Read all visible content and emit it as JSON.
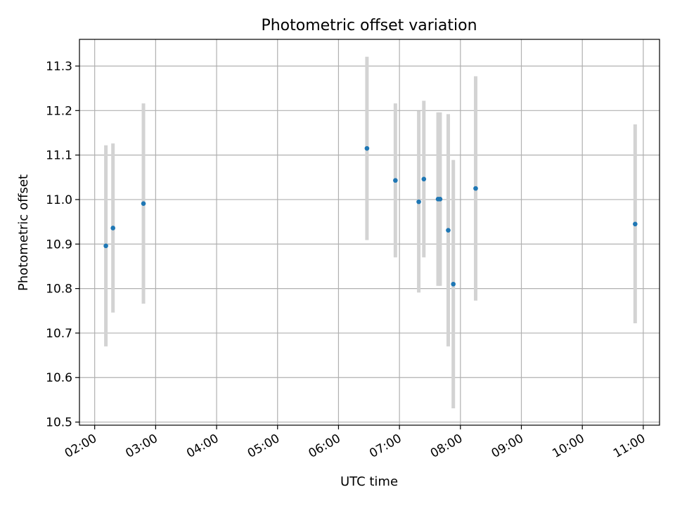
{
  "chart_data": {
    "type": "scatter",
    "title": "Photometric offset variation",
    "xlabel": "UTC time",
    "ylabel": "Photometric offset",
    "xlim": [
      "01:45",
      "11:16"
    ],
    "ylim": [
      10.493,
      11.36
    ],
    "x_ticks": [
      "02:00",
      "03:00",
      "04:00",
      "05:00",
      "06:00",
      "07:00",
      "08:00",
      "09:00",
      "10:00",
      "11:00"
    ],
    "y_ticks": [
      10.5,
      10.6,
      10.7,
      10.8,
      10.9,
      11.0,
      11.1,
      11.2,
      11.3
    ],
    "grid": true,
    "series": [
      {
        "marker": "dot",
        "error_bars": true,
        "points": [
          {
            "x": "02:11",
            "y": 10.896,
            "ylow": 10.67,
            "yhigh": 11.122
          },
          {
            "x": "02:18",
            "y": 10.936,
            "ylow": 10.746,
            "yhigh": 11.126
          },
          {
            "x": "02:48",
            "y": 10.991,
            "ylow": 10.766,
            "yhigh": 11.216
          },
          {
            "x": "06:28",
            "y": 11.115,
            "ylow": 10.909,
            "yhigh": 11.321
          },
          {
            "x": "06:56",
            "y": 11.043,
            "ylow": 10.87,
            "yhigh": 11.216
          },
          {
            "x": "07:19",
            "y": 10.995,
            "ylow": 10.791,
            "yhigh": 11.199
          },
          {
            "x": "07:24",
            "y": 11.046,
            "ylow": 10.87,
            "yhigh": 11.222
          },
          {
            "x": "07:38",
            "y": 11.001,
            "ylow": 10.806,
            "yhigh": 11.196
          },
          {
            "x": "07:40",
            "y": 11.001,
            "ylow": 10.806,
            "yhigh": 11.196
          },
          {
            "x": "07:48",
            "y": 10.931,
            "ylow": 10.67,
            "yhigh": 11.192
          },
          {
            "x": "07:53",
            "y": 10.81,
            "ylow": 10.531,
            "yhigh": 11.089
          },
          {
            "x": "08:15",
            "y": 11.025,
            "ylow": 10.773,
            "yhigh": 11.277
          },
          {
            "x": "10:52",
            "y": 10.945,
            "ylow": 10.722,
            "yhigh": 11.169
          }
        ]
      }
    ],
    "colors": {
      "marker": "#1f77b4",
      "error_bar": "#d3d3d3",
      "grid": "#b0b0b0",
      "axes": "#000000"
    }
  }
}
